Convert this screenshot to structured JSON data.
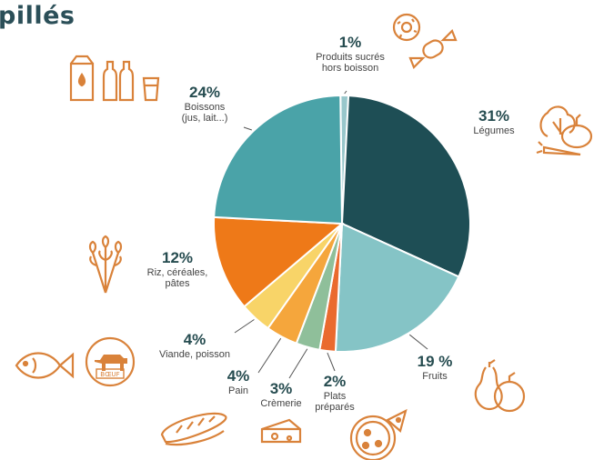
{
  "title": "pillés",
  "chart_data": {
    "type": "pie",
    "slices": [
      {
        "label": "Produits sucrés hors boisson",
        "label_lines": [
          "Produits sucrés",
          "hors boisson"
        ],
        "value": 1,
        "percent_label": "1%",
        "color": "#98c7cb"
      },
      {
        "label": "Légumes",
        "label_lines": [
          "Légumes"
        ],
        "value": 31,
        "percent_label": "31%",
        "color": "#1e4e55"
      },
      {
        "label": "Fruits",
        "label_lines": [
          "Fruits"
        ],
        "value": 19,
        "percent_label": "19 %",
        "color": "#85c4c6"
      },
      {
        "label": "Plats préparés",
        "label_lines": [
          "Plats",
          "préparés"
        ],
        "value": 2,
        "percent_label": "2%",
        "color": "#ea6a2e"
      },
      {
        "label": "Crèmerie",
        "label_lines": [
          "Crèmerie"
        ],
        "value": 3,
        "percent_label": "3%",
        "color": "#8fbf9a"
      },
      {
        "label": "Pain",
        "label_lines": [
          "Pain"
        ],
        "value": 4,
        "percent_label": "4%",
        "color": "#f5a63c"
      },
      {
        "label": "Viande, poisson",
        "label_lines": [
          "Viande, poisson"
        ],
        "value": 4,
        "percent_label": "4%",
        "color": "#f8d468"
      },
      {
        "label": "Riz, céréales, pâtes",
        "label_lines": [
          "Riz, céréales,",
          "pâtes"
        ],
        "value": 12,
        "percent_label": "12%",
        "color": "#ee7918"
      },
      {
        "label": "Boissons (jus, lait...)",
        "label_lines": [
          "Boissons",
          "(jus, lait...)"
        ],
        "value": 24,
        "percent_label": "24%",
        "color": "#4aa3a8"
      }
    ],
    "legend": "none",
    "annotations": "outside labels with leader lines"
  },
  "icons": [
    "donut-candy-icon",
    "milk-bottles-icon",
    "vegetables-icon",
    "wheat-icon",
    "fish-icon",
    "beef-icon",
    "beef-label",
    "bread-icon",
    "cheese-icon",
    "pizza-icon",
    "pear-apple-icon"
  ],
  "beef_text": "BŒUF",
  "accent_color": "#d9823a"
}
